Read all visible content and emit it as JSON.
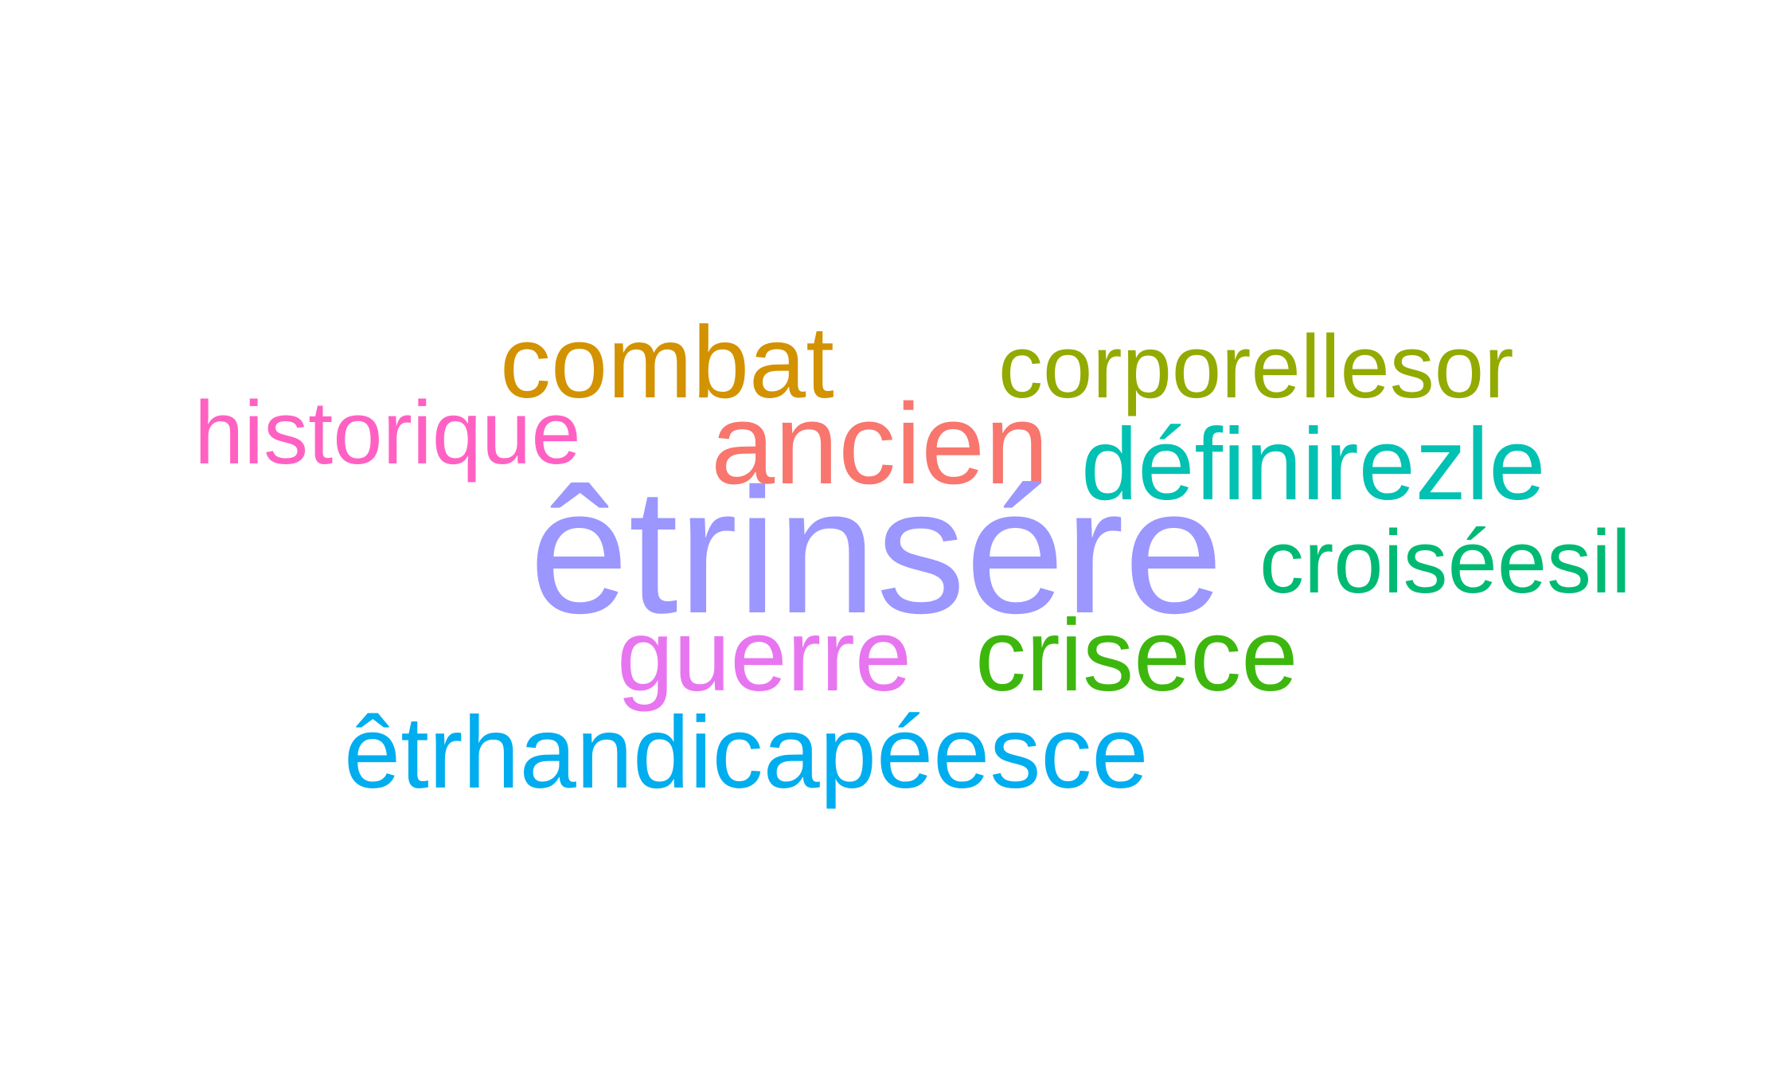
{
  "words": [
    {
      "id": "combat",
      "text": "combat",
      "color": "#D39200"
    },
    {
      "id": "corporellesor",
      "text": "corporellesor",
      "color": "#93AA00"
    },
    {
      "id": "historique",
      "text": "historique",
      "color": "#FF61C3"
    },
    {
      "id": "ancien",
      "text": "ancien",
      "color": "#F8766D"
    },
    {
      "id": "definirezle",
      "text": "définirezle",
      "color": "#00C1B2"
    },
    {
      "id": "etrinsere",
      "text": "êtrinsére",
      "color": "#9B97FF"
    },
    {
      "id": "croiseesil",
      "text": "croiséesil",
      "color": "#00BA73"
    },
    {
      "id": "guerre",
      "text": "guerre",
      "color": "#E875F0"
    },
    {
      "id": "crisece",
      "text": "crisece",
      "color": "#3DB70E"
    },
    {
      "id": "etrhandicapeesce",
      "text": "êtrhandicapéesce",
      "color": "#00ADEF"
    }
  ]
}
